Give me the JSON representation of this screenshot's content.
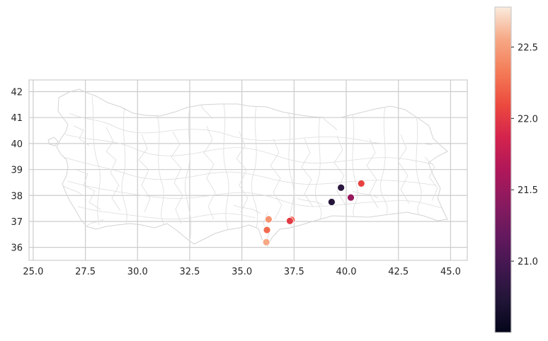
{
  "chart_data": {
    "type": "scatter",
    "title": "",
    "xlabel": "",
    "ylabel": "",
    "xlim": [
      24.8,
      45.8
    ],
    "ylim": [
      35.5,
      42.45
    ],
    "xticks": [
      "25.0",
      "27.5",
      "30.0",
      "32.5",
      "35.0",
      "37.5",
      "40.0",
      "42.5",
      "45.0"
    ],
    "yticks": [
      "36",
      "37",
      "38",
      "39",
      "40",
      "41",
      "42"
    ],
    "grid": true,
    "basemap": "district boundaries outline",
    "colormap": "rocket",
    "colorbar": {
      "range": [
        20.5,
        22.78
      ],
      "ticks": [
        "21.0",
        "21.5",
        "22.0",
        "22.5"
      ]
    },
    "points": [
      {
        "x": 36.17,
        "y": 36.2,
        "value": 22.55
      },
      {
        "x": 36.2,
        "y": 36.67,
        "value": 22.25
      },
      {
        "x": 36.28,
        "y": 37.08,
        "value": 22.45
      },
      {
        "x": 37.38,
        "y": 37.06,
        "value": 22.15
      },
      {
        "x": 37.3,
        "y": 37.02,
        "value": 22.0
      },
      {
        "x": 39.3,
        "y": 37.75,
        "value": 20.75
      },
      {
        "x": 39.75,
        "y": 38.3,
        "value": 20.8
      },
      {
        "x": 40.22,
        "y": 37.92,
        "value": 21.5
      },
      {
        "x": 40.72,
        "y": 38.46,
        "value": 22.05
      }
    ]
  }
}
